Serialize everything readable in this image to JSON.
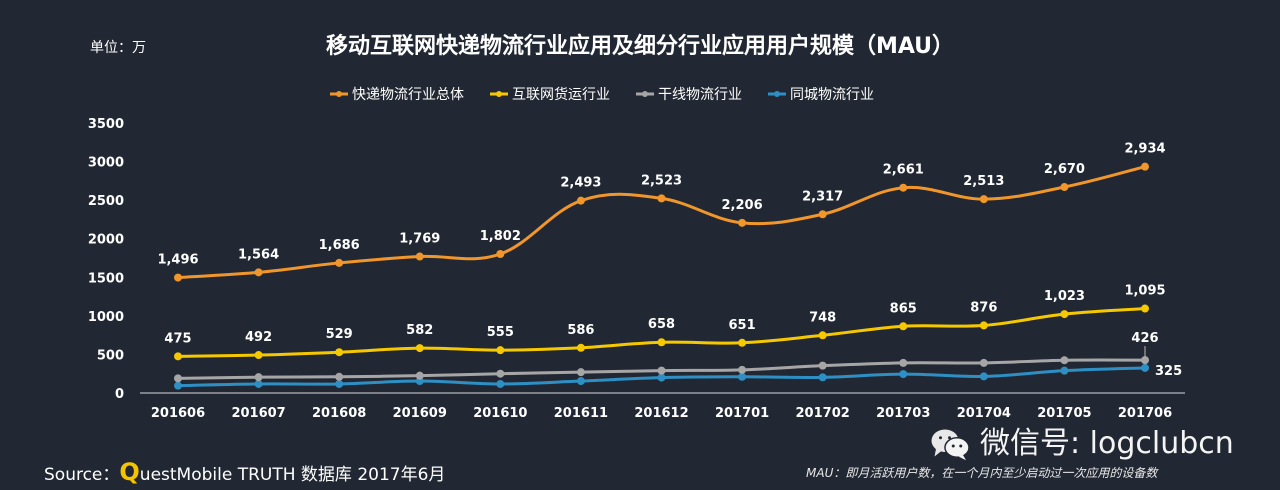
{
  "unit_label": "单位：万",
  "source": {
    "prefix": "Source：",
    "q": "Q",
    "rest": "uestMobile TRUTH 数据库 2017年6月"
  },
  "note": "MAU：即月活跃用户数，在一个月内至少启动过一次应用的设备数",
  "watermark": {
    "text": "微信号: logclubcn",
    "icon": "wechat-icon"
  },
  "chart_data": {
    "type": "line",
    "title": "移动互联网快递物流行业应用及细分行业应用用户规模（MAU）",
    "ylim": [
      0,
      3500
    ],
    "yticks": [
      0,
      500,
      1000,
      1500,
      2000,
      2500,
      3000,
      3500
    ],
    "grid": false,
    "legend_position": "top",
    "categories": [
      "201606",
      "201607",
      "201608",
      "201609",
      "201610",
      "201611",
      "201612",
      "201701",
      "201702",
      "201703",
      "201704",
      "201705",
      "201706"
    ],
    "series": [
      {
        "name": "快递物流行业总体",
        "color": "#f0962a",
        "labeled": true,
        "values": [
          1496,
          1564,
          1686,
          1769,
          1802,
          2493,
          2523,
          2206,
          2317,
          2661,
          2513,
          2670,
          2934
        ]
      },
      {
        "name": "互联网货运行业",
        "color": "#f5c800",
        "labeled": true,
        "values": [
          475,
          492,
          529,
          582,
          555,
          586,
          658,
          651,
          748,
          865,
          876,
          1023,
          1095
        ]
      },
      {
        "name": "干线物流行业",
        "color": "#a6a6a6",
        "labeled": "last",
        "values": [
          190,
          205,
          210,
          225,
          250,
          270,
          290,
          300,
          355,
          390,
          390,
          425,
          426
        ]
      },
      {
        "name": "同城物流行业",
        "color": "#2e8fc4",
        "labeled": "last",
        "values": [
          95,
          117,
          117,
          155,
          117,
          155,
          200,
          210,
          203,
          245,
          215,
          290,
          325
        ]
      }
    ]
  }
}
